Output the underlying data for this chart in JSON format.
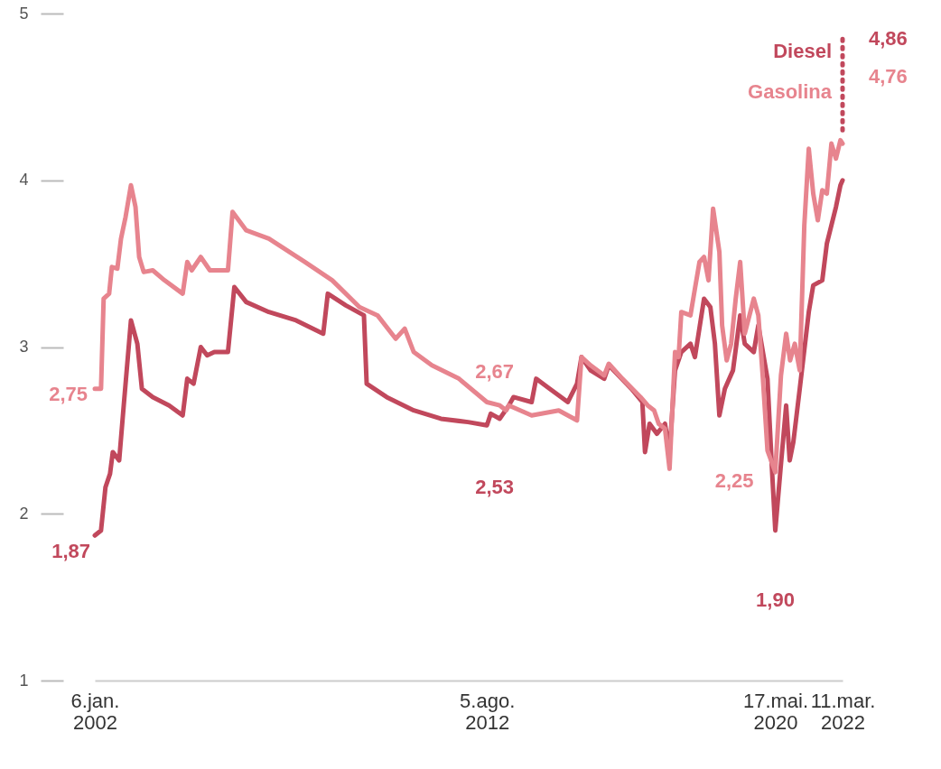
{
  "chart_data": {
    "type": "line",
    "xlim": [
      "2002-01-06",
      "2022-03-11"
    ],
    "ylim": [
      1,
      5
    ],
    "yticks": [
      1,
      2,
      3,
      4,
      5
    ],
    "xticks": [
      {
        "value": "2002-01-06",
        "label": "6.jan. 2002"
      },
      {
        "value": "2012-08-05",
        "label": "5.ago. 2012"
      },
      {
        "value": "2020-05-17",
        "label": "17.mai. 2020"
      },
      {
        "value": "2022-03-11",
        "label": "11.mar. 2022"
      }
    ],
    "grid": false,
    "legend": "top right",
    "marker": "none",
    "line_style": "solid",
    "series": [
      {
        "name": "Diesel",
        "color": "#c1485c",
        "x": [
          "2002-01-06",
          "2002-03-08",
          "2002-04-21",
          "2002-06-05",
          "2002-07-02",
          "2002-09-03",
          "2002-10-18",
          "2002-12-28",
          "2003-03-01",
          "2003-04-15",
          "2003-07-31",
          "2004-01-08",
          "2004-05-21",
          "2004-07-05",
          "2004-09-05",
          "2004-11-15",
          "2005-01-17",
          "2005-03-29",
          "2005-08-10",
          "2005-10-12",
          "2006-02-06",
          "2006-09-17",
          "2007-06-12",
          "2008-03-06",
          "2008-04-20",
          "2008-10-15",
          "2009-04-11",
          "2009-05-08",
          "2009-11-21",
          "2010-08-15",
          "2011-05-10",
          "2012-02-01",
          "2012-08-05",
          "2012-09-12",
          "2012-12-10",
          "2013-03-10",
          "2013-04-24",
          "2013-10-20",
          "2013-12-03",
          "2014-04-16",
          "2014-10-12",
          "2015-01-10",
          "2015-02-23",
          "2015-05-24",
          "2015-10-05",
          "2015-11-19",
          "2016-06-29",
          "2016-10-15",
          "2016-11-10",
          "2016-12-25",
          "2017-03-07",
          "2017-05-26",
          "2017-07-10",
          "2017-09-02",
          "2017-11-03",
          "2018-02-01",
          "2018-03-17",
          "2018-06-15",
          "2018-08-16",
          "2018-09-30",
          "2018-11-13",
          "2019-01-06",
          "2019-03-27",
          "2019-06-06",
          "2019-07-21",
          "2019-10-18",
          "2019-12-02",
          "2020-03-01",
          "2020-04-14",
          "2020-05-17",
          "2020-07-08",
          "2020-09-01",
          "2020-10-06",
          "2020-11-11",
          "2021-01-13",
          "2021-04-12",
          "2021-05-26",
          "2021-08-23",
          "2021-10-07",
          "2021-11-21",
          "2022-01-05",
          "2022-02-18",
          "2022-03-11"
        ],
        "values": [
          1.87,
          1.9,
          2.16,
          2.24,
          2.37,
          2.32,
          2.65,
          3.16,
          3.02,
          2.75,
          2.7,
          2.65,
          2.59,
          2.81,
          2.78,
          3.0,
          2.95,
          2.97,
          2.97,
          3.36,
          3.27,
          3.21,
          3.16,
          3.08,
          3.32,
          3.25,
          3.19,
          2.78,
          2.7,
          2.62,
          2.57,
          2.55,
          2.53,
          2.6,
          2.57,
          2.65,
          2.7,
          2.67,
          2.81,
          2.75,
          2.67,
          2.78,
          2.94,
          2.86,
          2.81,
          2.89,
          2.75,
          2.67,
          2.37,
          2.54,
          2.48,
          2.54,
          2.37,
          2.86,
          2.97,
          3.02,
          2.94,
          3.29,
          3.24,
          3.02,
          2.59,
          2.75,
          2.86,
          3.19,
          3.02,
          2.97,
          3.13,
          2.81,
          2.27,
          1.9,
          2.27,
          2.65,
          2.32,
          2.43,
          2.75,
          3.21,
          3.37,
          3.4,
          3.62,
          3.73,
          3.84,
          3.97,
          4.0
        ]
      },
      {
        "name": "Gasolina",
        "color": "#e7848e",
        "x": [
          "2002-01-06",
          "2002-03-08",
          "2002-04-03",
          "2002-05-27",
          "2002-06-23",
          "2002-08-16",
          "2002-09-21",
          "2002-11-05",
          "2002-12-28",
          "2003-02-11",
          "2003-03-19",
          "2003-05-03",
          "2003-07-31",
          "2003-11-24",
          "2004-05-21",
          "2004-07-05",
          "2004-08-18",
          "2004-11-15",
          "2005-02-13",
          "2005-08-10",
          "2005-09-24",
          "2006-02-06",
          "2006-09-17",
          "2007-09-09",
          "2008-06-03",
          "2009-02-26",
          "2009-08-23",
          "2010-02-18",
          "2010-05-18",
          "2010-08-15",
          "2011-02-10",
          "2011-11-04",
          "2012-08-05",
          "2012-12-10",
          "2013-02-11",
          "2013-03-10",
          "2013-10-20",
          "2014-07-14",
          "2015-01-10",
          "2015-02-23",
          "2015-05-24",
          "2015-10-05",
          "2015-11-19",
          "2016-04-01",
          "2016-09-27",
          "2016-12-07",
          "2017-02-08",
          "2017-03-25",
          "2017-05-26",
          "2017-07-10",
          "2017-09-02",
          "2017-10-07",
          "2017-11-03",
          "2018-02-01",
          "2018-03-17",
          "2018-05-01",
          "2018-06-15",
          "2018-07-29",
          "2018-09-12",
          "2018-11-13",
          "2018-12-10",
          "2019-01-24",
          "2019-03-09",
          "2019-04-23",
          "2019-06-06",
          "2019-07-21",
          "2019-10-18",
          "2019-12-02",
          "2020-01-16",
          "2020-03-01",
          "2020-05-17",
          "2020-07-12",
          "2020-09-01",
          "2020-10-10",
          "2020-11-25",
          "2021-01-13",
          "2021-02-27",
          "2021-04-12",
          "2021-05-26",
          "2021-07-10",
          "2021-08-23",
          "2021-10-07",
          "2021-11-21",
          "2022-01-05",
          "2022-02-18",
          "2022-03-11"
        ],
        "values": [
          2.75,
          2.75,
          3.29,
          3.32,
          3.48,
          3.47,
          3.65,
          3.78,
          3.97,
          3.84,
          3.54,
          3.45,
          3.46,
          3.4,
          3.32,
          3.51,
          3.46,
          3.54,
          3.46,
          3.46,
          3.81,
          3.7,
          3.65,
          3.51,
          3.4,
          3.24,
          3.19,
          3.05,
          3.11,
          2.97,
          2.89,
          2.81,
          2.67,
          2.65,
          2.62,
          2.65,
          2.59,
          2.62,
          2.56,
          2.94,
          2.89,
          2.83,
          2.9,
          2.81,
          2.7,
          2.65,
          2.62,
          2.54,
          2.51,
          2.27,
          2.97,
          2.94,
          3.21,
          3.19,
          3.35,
          3.51,
          3.54,
          3.4,
          3.83,
          3.57,
          3.13,
          2.92,
          3.02,
          3.29,
          3.51,
          3.08,
          3.29,
          3.19,
          2.81,
          2.38,
          2.25,
          2.83,
          3.08,
          2.92,
          3.02,
          2.86,
          3.73,
          4.19,
          3.92,
          3.76,
          3.94,
          3.92,
          4.22,
          4.13,
          4.24,
          4.22
        ]
      },
      {
        "color": "#c1485c",
        "line_style": "dotted",
        "x": [
          "2022-03-11",
          "2022-03-11"
        ],
        "values": [
          4.3,
          4.86
        ]
      }
    ],
    "annotations": [
      {
        "text": "2,75",
        "x": "2002-01-06",
        "y": 2.75
      },
      {
        "text": "1,87",
        "x": "2002-01-06",
        "y": 1.87
      },
      {
        "text": "2,67",
        "x": "2012-08-05",
        "y": 2.67
      },
      {
        "text": "2,53",
        "x": "2012-08-05",
        "y": 2.53
      },
      {
        "text": "2,25",
        "x": "2020-05-17",
        "y": 2.25
      },
      {
        "text": "1,90",
        "x": "2020-05-17",
        "y": 1.9
      },
      {
        "text": "4,86",
        "x": "2022-03-11",
        "y": 4.86
      },
      {
        "text": "4,76",
        "x": "2022-03-11",
        "y": 4.76
      }
    ]
  }
}
